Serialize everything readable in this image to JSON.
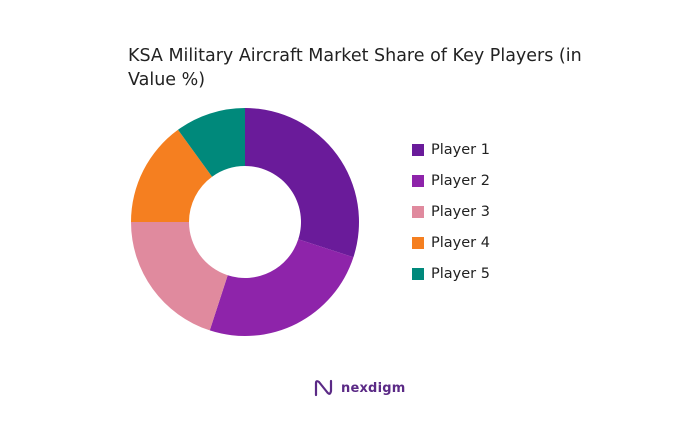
{
  "chart_data": {
    "type": "pie",
    "title": "KSA Military Aircraft Market Share of Key Players (in Value %)",
    "series": [
      {
        "name": "Player 1",
        "value": 30,
        "color": "#6a1b9a"
      },
      {
        "name": "Player 2",
        "value": 25,
        "color": "#8e24aa"
      },
      {
        "name": "Player 3",
        "value": 20,
        "color": "#e08a9e"
      },
      {
        "name": "Player 4",
        "value": 15,
        "color": "#f57f20"
      },
      {
        "name": "Player 5",
        "value": 10,
        "color": "#00897b"
      }
    ],
    "donut": true,
    "legend_position": "right"
  },
  "brand": {
    "name": "nexdigm",
    "icon": "nexdigm-logo-icon",
    "color": "#5b2a86"
  }
}
